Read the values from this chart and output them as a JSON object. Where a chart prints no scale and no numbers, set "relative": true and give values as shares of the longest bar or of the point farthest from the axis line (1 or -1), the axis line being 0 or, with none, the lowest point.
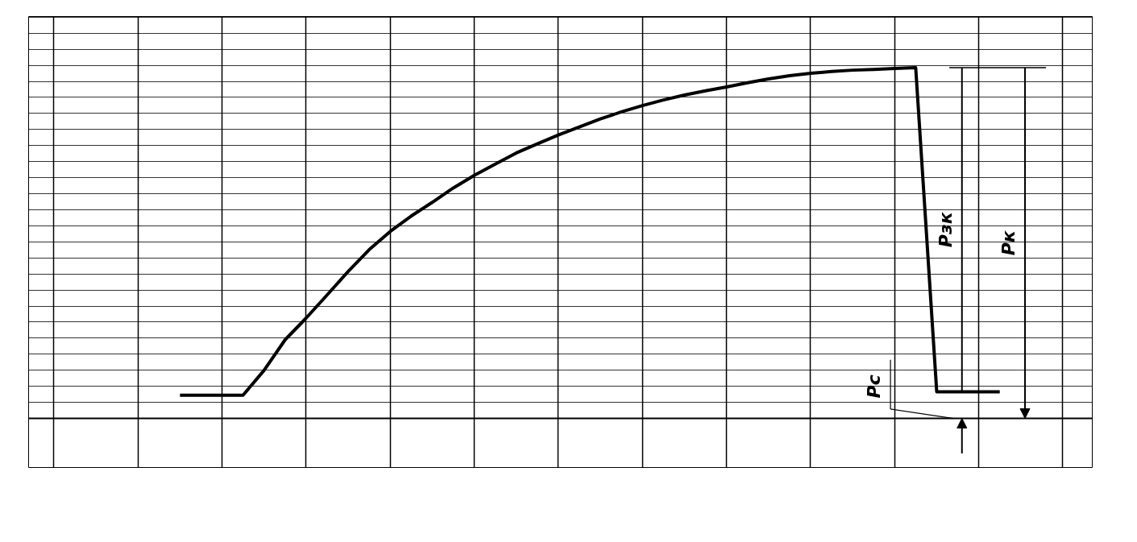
{
  "chart_data": {
    "type": "line",
    "relative": true,
    "grid": true,
    "color": "#000000",
    "categories": [
      null,
      null,
      null,
      null,
      null,
      null,
      null,
      null,
      null,
      null,
      null,
      null,
      null,
      null,
      null,
      null,
      null,
      null,
      null,
      null,
      null,
      null,
      null,
      null,
      null,
      null,
      null,
      null,
      null,
      null,
      null,
      null,
      null,
      null,
      null,
      null,
      null,
      null,
      null,
      null
    ],
    "values": [
      0.066,
      0.066,
      0.066,
      0.066,
      0.137,
      0.224,
      0.286,
      0.352,
      0.419,
      0.481,
      0.533,
      0.577,
      0.616,
      0.657,
      0.693,
      0.725,
      0.757,
      0.783,
      0.808,
      0.831,
      0.854,
      0.874,
      0.892,
      0.908,
      0.922,
      0.934,
      0.945,
      0.957,
      0.968,
      0.977,
      0.984,
      0.989,
      0.993,
      0.995,
      0.998,
      1,
      0.076,
      0.076,
      0.076,
      0.076
    ],
    "annotations": [
      "Pзк",
      "Pк",
      "Pс"
    ]
  }
}
